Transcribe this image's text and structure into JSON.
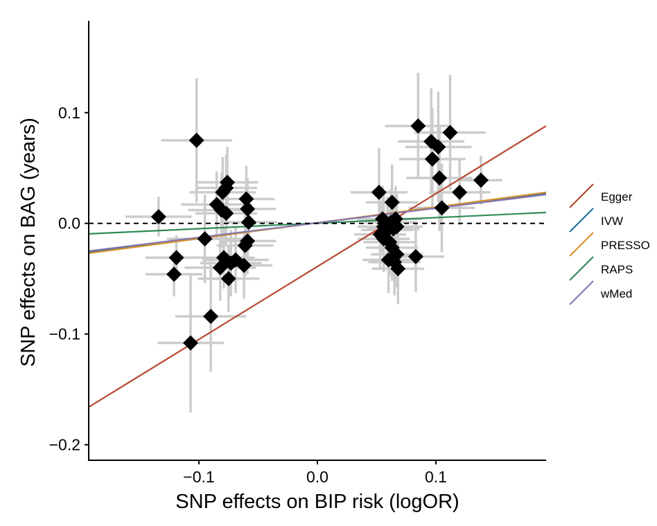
{
  "chart_data": {
    "type": "scatter",
    "xlabel": "SNP effects on BIP risk (logOR)",
    "ylabel": "SNP effects on BAG (years)",
    "xlim": [
      -0.193,
      0.193
    ],
    "ylim": [
      -0.214,
      0.183
    ],
    "xticks": [
      -0.1,
      0.0,
      0.1
    ],
    "xtick_labels": [
      "−0.1",
      "0.0",
      "0.1"
    ],
    "yticks": [
      -0.2,
      -0.1,
      0.0,
      0.1
    ],
    "ytick_labels": [
      "−0.2",
      "−0.1",
      "0.0",
      "0.1"
    ],
    "grid": false,
    "legend_position": "right",
    "reference_line": {
      "y": 0,
      "style": "dashed",
      "color": "#000000"
    },
    "errorbar_color": "#cccccc",
    "point_color": "#000000",
    "point_marker": "diamond",
    "points": [
      {
        "x": -0.134,
        "y": 0.006,
        "xerr": 0.028,
        "yerr": 0.018
      },
      {
        "x": -0.102,
        "y": 0.075,
        "xerr": 0.03,
        "yerr": 0.056
      },
      {
        "x": -0.119,
        "y": -0.031,
        "xerr": 0.026,
        "yerr": 0.02
      },
      {
        "x": -0.121,
        "y": -0.046,
        "xerr": 0.024,
        "yerr": 0.02
      },
      {
        "x": -0.095,
        "y": -0.014,
        "xerr": 0.032,
        "yerr": 0.04
      },
      {
        "x": -0.107,
        "y": -0.108,
        "xerr": 0.028,
        "yerr": 0.063
      },
      {
        "x": -0.09,
        "y": -0.084,
        "xerr": 0.03,
        "yerr": 0.05
      },
      {
        "x": -0.085,
        "y": 0.017,
        "xerr": 0.03,
        "yerr": 0.03
      },
      {
        "x": -0.08,
        "y": 0.028,
        "xerr": 0.028,
        "yerr": 0.032
      },
      {
        "x": -0.076,
        "y": 0.037,
        "xerr": 0.026,
        "yerr": 0.032
      },
      {
        "x": -0.077,
        "y": 0.032,
        "xerr": 0.026,
        "yerr": 0.03
      },
      {
        "x": -0.081,
        "y": 0.012,
        "xerr": 0.028,
        "yerr": 0.034
      },
      {
        "x": -0.077,
        "y": 0.009,
        "xerr": 0.026,
        "yerr": 0.03
      },
      {
        "x": -0.082,
        "y": -0.04,
        "xerr": 0.03,
        "yerr": 0.03
      },
      {
        "x": -0.079,
        "y": -0.031,
        "xerr": 0.026,
        "yerr": 0.028
      },
      {
        "x": -0.075,
        "y": -0.05,
        "xerr": 0.026,
        "yerr": 0.03
      },
      {
        "x": -0.073,
        "y": -0.036,
        "xerr": 0.026,
        "yerr": 0.03
      },
      {
        "x": -0.069,
        "y": -0.033,
        "xerr": 0.028,
        "yerr": 0.03
      },
      {
        "x": -0.06,
        "y": 0.022,
        "xerr": 0.024,
        "yerr": 0.03
      },
      {
        "x": -0.059,
        "y": 0.013,
        "xerr": 0.024,
        "yerr": 0.028
      },
      {
        "x": -0.058,
        "y": 0.001,
        "xerr": 0.024,
        "yerr": 0.026
      },
      {
        "x": -0.061,
        "y": -0.02,
        "xerr": 0.024,
        "yerr": 0.028
      },
      {
        "x": -0.059,
        "y": -0.016,
        "xerr": 0.024,
        "yerr": 0.03
      },
      {
        "x": -0.062,
        "y": -0.038,
        "xerr": 0.024,
        "yerr": 0.03
      },
      {
        "x": 0.052,
        "y": 0.028,
        "xerr": 0.024,
        "yerr": 0.04
      },
      {
        "x": 0.063,
        "y": 0.019,
        "xerr": 0.022,
        "yerr": 0.034
      },
      {
        "x": 0.055,
        "y": 0.004,
        "xerr": 0.022,
        "yerr": 0.03
      },
      {
        "x": 0.056,
        "y": -0.003,
        "xerr": 0.022,
        "yerr": 0.03
      },
      {
        "x": 0.053,
        "y": -0.01,
        "xerr": 0.022,
        "yerr": 0.03
      },
      {
        "x": 0.056,
        "y": -0.014,
        "xerr": 0.022,
        "yerr": 0.03
      },
      {
        "x": 0.059,
        "y": -0.006,
        "xerr": 0.022,
        "yerr": 0.03
      },
      {
        "x": 0.061,
        "y": -0.017,
        "xerr": 0.022,
        "yerr": 0.03
      },
      {
        "x": 0.062,
        "y": 0.001,
        "xerr": 0.022,
        "yerr": 0.03
      },
      {
        "x": 0.064,
        "y": -0.005,
        "xerr": 0.022,
        "yerr": 0.03
      },
      {
        "x": 0.066,
        "y": 0.004,
        "xerr": 0.022,
        "yerr": 0.03
      },
      {
        "x": 0.067,
        "y": -0.003,
        "xerr": 0.022,
        "yerr": 0.03
      },
      {
        "x": 0.063,
        "y": -0.022,
        "xerr": 0.022,
        "yerr": 0.03
      },
      {
        "x": 0.06,
        "y": -0.033,
        "xerr": 0.022,
        "yerr": 0.03
      },
      {
        "x": 0.065,
        "y": -0.035,
        "xerr": 0.022,
        "yerr": 0.03
      },
      {
        "x": 0.067,
        "y": -0.028,
        "xerr": 0.022,
        "yerr": 0.03
      },
      {
        "x": 0.068,
        "y": -0.041,
        "xerr": 0.022,
        "yerr": 0.032
      },
      {
        "x": 0.083,
        "y": -0.03,
        "xerr": 0.024,
        "yerr": 0.032
      },
      {
        "x": 0.085,
        "y": 0.088,
        "xerr": 0.028,
        "yerr": 0.048
      },
      {
        "x": 0.096,
        "y": 0.074,
        "xerr": 0.028,
        "yerr": 0.048
      },
      {
        "x": 0.102,
        "y": 0.069,
        "xerr": 0.028,
        "yerr": 0.05
      },
      {
        "x": 0.097,
        "y": 0.058,
        "xerr": 0.028,
        "yerr": 0.046
      },
      {
        "x": 0.112,
        "y": 0.082,
        "xerr": 0.03,
        "yerr": 0.052
      },
      {
        "x": 0.103,
        "y": 0.041,
        "xerr": 0.028,
        "yerr": 0.048
      },
      {
        "x": 0.105,
        "y": 0.014,
        "xerr": 0.028,
        "yerr": 0.04
      },
      {
        "x": 0.12,
        "y": 0.028,
        "xerr": 0.026,
        "yerr": 0.03
      },
      {
        "x": 0.138,
        "y": 0.039,
        "xerr": 0.018,
        "yerr": 0.022
      }
    ],
    "series": [
      {
        "name": "Egger",
        "color": "#b7462f",
        "x": [
          -0.193,
          0.193
        ],
        "y": [
          -0.166,
          0.088
        ]
      },
      {
        "name": "IVW",
        "color": "#1f6f9a",
        "x": [
          -0.193,
          0.193
        ],
        "y": [
          -0.026,
          0.027
        ]
      },
      {
        "name": "PRESSO",
        "color": "#d8902a",
        "x": [
          -0.193,
          0.193
        ],
        "y": [
          -0.027,
          0.028
        ]
      },
      {
        "name": "RAPS",
        "color": "#2f8a55",
        "x": [
          -0.193,
          0.193
        ],
        "y": [
          -0.0095,
          0.0098
        ]
      },
      {
        "name": "wMed",
        "color": "#8478b3",
        "x": [
          -0.193,
          0.193
        ],
        "y": [
          -0.025,
          0.026
        ]
      }
    ]
  }
}
